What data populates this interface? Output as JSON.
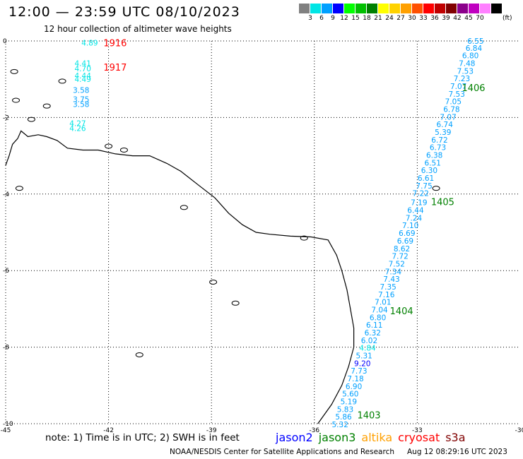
{
  "header": {
    "title": "12:00 — 23:59 UTC 08/10/2023",
    "subtitle": "12 hour collection of altimeter wave heights"
  },
  "legend": {
    "unit": "(ft)",
    "colors": [
      "#808080",
      "#00e5e5",
      "#00a0ff",
      "#0000ff",
      "#00ff00",
      "#00c000",
      "#008000",
      "#ffff00",
      "#ffd200",
      "#ffa000",
      "#ff5000",
      "#ff0000",
      "#c00000",
      "#800000",
      "#8b008b",
      "#c000c0",
      "#ff80ff",
      "#000000"
    ],
    "tick_labels": [
      "3",
      "6",
      "9",
      "12",
      "15",
      "18",
      "21",
      "24",
      "27",
      "30",
      "33",
      "36",
      "39",
      "42",
      "45",
      "70"
    ]
  },
  "map": {
    "lon_range": [
      -45,
      -30
    ],
    "lat_range": [
      -10,
      0
    ],
    "lon_ticks": [
      {
        "value": -45,
        "label": "-45"
      },
      {
        "value": -42,
        "label": "-42"
      },
      {
        "value": -39,
        "label": "-39"
      },
      {
        "value": -36,
        "label": "-36"
      },
      {
        "value": -33,
        "label": "-33"
      },
      {
        "value": -30,
        "label": "-30"
      }
    ],
    "lat_ticks": [
      {
        "value": 0,
        "label": "0"
      },
      {
        "value": -2,
        "label": "-2"
      },
      {
        "value": -4,
        "label": "-4"
      },
      {
        "value": -6,
        "label": "-6"
      },
      {
        "value": -8,
        "label": "-8"
      },
      {
        "value": -10,
        "label": "-10"
      }
    ],
    "gridlines": true,
    "track_labels": [
      {
        "text": "1916",
        "lon": -42.15,
        "lat": -0.05,
        "color": "#ff0000"
      },
      {
        "text": "1917",
        "lon": -42.15,
        "lat": -0.68,
        "color": "#ff0000"
      },
      {
        "text": "1406",
        "lon": -31.7,
        "lat": -1.22,
        "color": "#008000"
      },
      {
        "text": "1405",
        "lon": -32.6,
        "lat": -4.2,
        "color": "#008000"
      },
      {
        "text": "1404",
        "lon": -33.8,
        "lat": -7.05,
        "color": "#008000"
      },
      {
        "text": "1403",
        "lon": -34.75,
        "lat": -9.77,
        "color": "#008000"
      }
    ],
    "tracks": [
      {
        "id": "1916",
        "points": [
          {
            "lon": -42.55,
            "lat": -0.05,
            "swh": "4.89",
            "color": "#00e5e5"
          }
        ]
      },
      {
        "id": "1917",
        "points": [
          {
            "lon": -42.75,
            "lat": -0.58,
            "swh": "4.41",
            "color": "#00e5e5"
          },
          {
            "lon": -42.75,
            "lat": -0.72,
            "swh": "4.70",
            "color": "#00e5e5"
          },
          {
            "lon": -42.75,
            "lat": -0.9,
            "swh": "4.44",
            "color": "#00e5e5"
          },
          {
            "lon": -42.75,
            "lat": -1.0,
            "swh": "4.49",
            "color": "#00e5e5"
          },
          {
            "lon": -42.8,
            "lat": -1.28,
            "swh": "3.58",
            "color": "#00a0ff"
          },
          {
            "lon": -42.8,
            "lat": -1.52,
            "swh": "3.75",
            "color": "#00a0ff"
          },
          {
            "lon": -42.8,
            "lat": -1.65,
            "swh": "3.58",
            "color": "#00a0ff"
          },
          {
            "lon": -42.9,
            "lat": -2.15,
            "swh": "4.27",
            "color": "#00e5e5"
          },
          {
            "lon": -42.9,
            "lat": -2.28,
            "swh": "4.26",
            "color": "#00e5e5"
          }
        ]
      },
      {
        "id": "1406",
        "points": [
          {
            "lon": -31.3,
            "lat": 0.0,
            "swh": "6.55",
            "color": "#00a0ff"
          },
          {
            "lon": -31.35,
            "lat": -0.18,
            "swh": "6.84",
            "color": "#00a0ff"
          },
          {
            "lon": -31.45,
            "lat": -0.38,
            "swh": "6.80",
            "color": "#00a0ff"
          },
          {
            "lon": -31.55,
            "lat": -0.58,
            "swh": "7.48",
            "color": "#00a0ff"
          },
          {
            "lon": -31.6,
            "lat": -0.78,
            "swh": "7.53",
            "color": "#00a0ff"
          },
          {
            "lon": -31.7,
            "lat": -0.98,
            "swh": "7.23",
            "color": "#00a0ff"
          },
          {
            "lon": -31.8,
            "lat": -1.18,
            "swh": "7.07",
            "color": "#00a0ff"
          },
          {
            "lon": -31.85,
            "lat": -1.38,
            "swh": "7.53",
            "color": "#00a0ff"
          },
          {
            "lon": -31.95,
            "lat": -1.58,
            "swh": "7.05",
            "color": "#00a0ff"
          },
          {
            "lon": -32.0,
            "lat": -1.78,
            "swh": "6.78",
            "color": "#00a0ff"
          },
          {
            "lon": -32.1,
            "lat": -1.98,
            "swh": "7.07",
            "color": "#00a0ff"
          },
          {
            "lon": -32.2,
            "lat": -2.18,
            "swh": "6.74",
            "color": "#00a0ff"
          },
          {
            "lon": -32.25,
            "lat": -2.38,
            "swh": "5.39",
            "color": "#00a0ff"
          },
          {
            "lon": -32.35,
            "lat": -2.58,
            "swh": "6.72",
            "color": "#00a0ff"
          },
          {
            "lon": -32.4,
            "lat": -2.78,
            "swh": "6.73",
            "color": "#00a0ff"
          },
          {
            "lon": -32.5,
            "lat": -2.98,
            "swh": "6.38",
            "color": "#00a0ff"
          },
          {
            "lon": -32.55,
            "lat": -3.18,
            "swh": "6.51",
            "color": "#00a0ff"
          },
          {
            "lon": -32.65,
            "lat": -3.38,
            "swh": "6.30",
            "color": "#00a0ff"
          },
          {
            "lon": -32.75,
            "lat": -3.58,
            "swh": "6.61",
            "color": "#00a0ff"
          },
          {
            "lon": -32.8,
            "lat": -3.78,
            "swh": "7.75",
            "color": "#00a0ff"
          },
          {
            "lon": -32.9,
            "lat": -3.98,
            "swh": "7.22",
            "color": "#00a0ff"
          }
        ]
      },
      {
        "id": "1405",
        "points": [
          {
            "lon": -32.95,
            "lat": -4.22,
            "swh": "7.19",
            "color": "#00a0ff"
          },
          {
            "lon": -33.05,
            "lat": -4.42,
            "swh": "6.44",
            "color": "#00a0ff"
          },
          {
            "lon": -33.1,
            "lat": -4.62,
            "swh": "7.24",
            "color": "#00a0ff"
          },
          {
            "lon": -33.2,
            "lat": -4.82,
            "swh": "7.10",
            "color": "#00a0ff"
          },
          {
            "lon": -33.3,
            "lat": -5.02,
            "swh": "6.69",
            "color": "#00a0ff"
          },
          {
            "lon": -33.35,
            "lat": -5.22,
            "swh": "6.69",
            "color": "#00a0ff"
          },
          {
            "lon": -33.45,
            "lat": -5.42,
            "swh": "8.62",
            "color": "#00a0ff"
          },
          {
            "lon": -33.5,
            "lat": -5.62,
            "swh": "7.72",
            "color": "#00a0ff"
          },
          {
            "lon": -33.6,
            "lat": -5.82,
            "swh": "7.52",
            "color": "#00a0ff"
          },
          {
            "lon": -33.7,
            "lat": -6.02,
            "swh": "7.34",
            "color": "#00a0ff"
          },
          {
            "lon": -33.75,
            "lat": -6.22,
            "swh": "7.43",
            "color": "#00a0ff"
          },
          {
            "lon": -33.85,
            "lat": -6.42,
            "swh": "7.35",
            "color": "#00a0ff"
          },
          {
            "lon": -33.9,
            "lat": -6.62,
            "swh": "7.16",
            "color": "#00a0ff"
          },
          {
            "lon": -34.0,
            "lat": -6.82,
            "swh": "7.01",
            "color": "#00a0ff"
          },
          {
            "lon": -34.1,
            "lat": -7.02,
            "swh": "7.04",
            "color": "#00a0ff"
          },
          {
            "lon": -34.15,
            "lat": -7.22,
            "swh": "6.80",
            "color": "#00a0ff"
          }
        ]
      },
      {
        "id": "1404",
        "points": [
          {
            "lon": -34.25,
            "lat": -7.42,
            "swh": "6.11",
            "color": "#00a0ff"
          },
          {
            "lon": -34.3,
            "lat": -7.62,
            "swh": "6.32",
            "color": "#00a0ff"
          },
          {
            "lon": -34.4,
            "lat": -7.82,
            "swh": "6.02",
            "color": "#00a0ff"
          },
          {
            "lon": -34.45,
            "lat": -8.02,
            "swh": "4.84",
            "color": "#00e5e5"
          },
          {
            "lon": -34.55,
            "lat": -8.22,
            "swh": "5.31",
            "color": "#00a0ff"
          },
          {
            "lon": -34.6,
            "lat": -8.42,
            "swh": "9.20",
            "color": "#0000ff"
          },
          {
            "lon": -34.7,
            "lat": -8.62,
            "swh": "7.73",
            "color": "#00a0ff"
          },
          {
            "lon": -34.8,
            "lat": -8.82,
            "swh": "7.18",
            "color": "#00a0ff"
          }
        ]
      },
      {
        "id": "1403",
        "points": [
          {
            "lon": -34.85,
            "lat": -9.02,
            "swh": "6.90",
            "color": "#00a0ff"
          },
          {
            "lon": -34.95,
            "lat": -9.22,
            "swh": "5.60",
            "color": "#00a0ff"
          },
          {
            "lon": -35.0,
            "lat": -9.42,
            "swh": "5.19",
            "color": "#00a0ff"
          },
          {
            "lon": -35.1,
            "lat": -9.62,
            "swh": "5.83",
            "color": "#00a0ff"
          },
          {
            "lon": -35.15,
            "lat": -9.82,
            "swh": "5.86",
            "color": "#00a0ff"
          },
          {
            "lon": -35.25,
            "lat": -10.02,
            "swh": "5.32",
            "color": "#00a0ff"
          }
        ]
      }
    ],
    "coastline": [
      [
        -45.0,
        -3.25
      ],
      [
        -44.9,
        -3.0
      ],
      [
        -44.8,
        -2.7
      ],
      [
        -44.65,
        -2.55
      ],
      [
        -44.55,
        -2.35
      ],
      [
        -44.35,
        -2.5
      ],
      [
        -44.05,
        -2.45
      ],
      [
        -43.8,
        -2.5
      ],
      [
        -43.5,
        -2.6
      ],
      [
        -43.2,
        -2.8
      ],
      [
        -42.75,
        -2.85
      ],
      [
        -42.3,
        -2.85
      ],
      [
        -41.8,
        -2.95
      ],
      [
        -41.3,
        -3.0
      ],
      [
        -40.8,
        -3.0
      ],
      [
        -40.3,
        -3.2
      ],
      [
        -39.9,
        -3.4
      ],
      [
        -39.4,
        -3.75
      ],
      [
        -38.9,
        -4.1
      ],
      [
        -38.5,
        -4.5
      ],
      [
        -38.1,
        -4.8
      ],
      [
        -37.7,
        -5.0
      ],
      [
        -37.3,
        -5.05
      ],
      [
        -36.7,
        -5.1
      ],
      [
        -36.1,
        -5.12
      ],
      [
        -35.6,
        -5.2
      ],
      [
        -35.35,
        -5.6
      ],
      [
        -35.2,
        -6.0
      ],
      [
        -35.05,
        -6.5
      ],
      [
        -34.95,
        -7.0
      ],
      [
        -34.85,
        -7.5
      ],
      [
        -34.85,
        -8.0
      ],
      [
        -35.0,
        -8.5
      ],
      [
        -35.2,
        -9.0
      ],
      [
        -35.5,
        -9.5
      ],
      [
        -35.9,
        -10.0
      ]
    ],
    "islands": [
      {
        "lon": -43.35,
        "lat": -1.05
      },
      {
        "lon": -43.8,
        "lat": -1.7
      },
      {
        "lon": -44.25,
        "lat": -2.05
      },
      {
        "lon": -44.7,
        "lat": -1.55
      },
      {
        "lon": -44.75,
        "lat": -0.8
      },
      {
        "lon": -44.6,
        "lat": -3.85
      },
      {
        "lon": -42.0,
        "lat": -2.75
      },
      {
        "lon": -41.55,
        "lat": -2.85
      },
      {
        "lon": -39.8,
        "lat": -4.35
      },
      {
        "lon": -38.95,
        "lat": -6.3
      },
      {
        "lon": -38.3,
        "lat": -6.85
      },
      {
        "lon": -36.3,
        "lat": -5.15
      },
      {
        "lon": -41.1,
        "lat": -8.2
      },
      {
        "lon": -32.45,
        "lat": -3.85
      }
    ]
  },
  "notes": {
    "text": "note:  1) Time is in UTC;  2) SWH is in feet"
  },
  "satellites": [
    {
      "name": "jason2",
      "color": "#0000ff"
    },
    {
      "name": "jason3",
      "color": "#008000"
    },
    {
      "name": "altika",
      "color": "#ffa000"
    },
    {
      "name": "cryosat",
      "color": "#ff0000"
    },
    {
      "name": "s3a",
      "color": "#800000"
    }
  ],
  "footer": {
    "credit": "NOAA/NESDIS Center for Satellite Applications and Research",
    "timestamp": "Aug 12 08:29:16 UTC 2023"
  }
}
